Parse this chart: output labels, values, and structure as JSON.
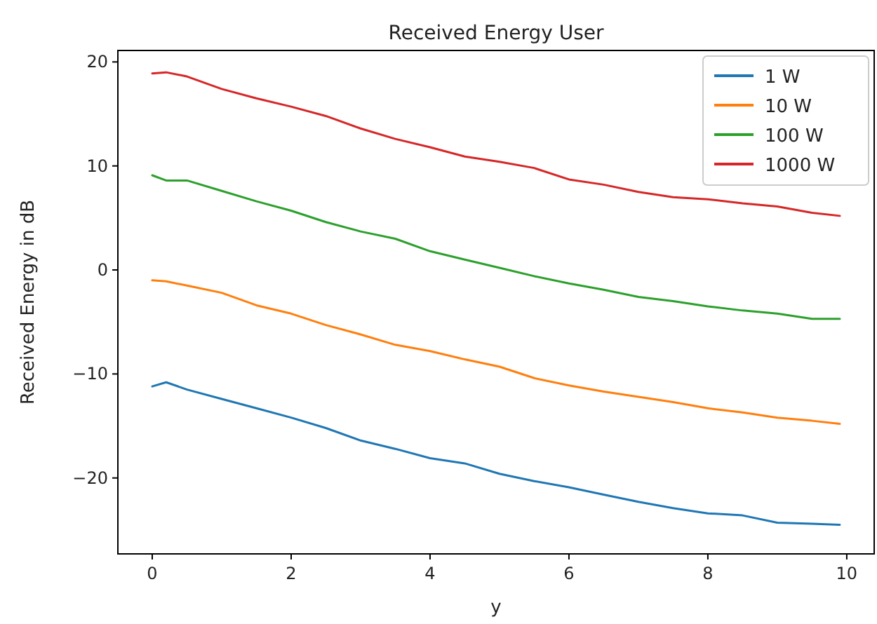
{
  "chart_data": {
    "type": "line",
    "title": "Received Energy User",
    "xlabel": "y",
    "ylabel": "Received Energy in dB",
    "x": [
      0,
      0.2,
      0.5,
      1,
      1.5,
      2,
      2.5,
      3,
      3.5,
      4,
      4.5,
      5,
      5.5,
      6,
      6.5,
      7,
      7.5,
      8,
      8.5,
      9,
      9.5,
      9.9
    ],
    "series": [
      {
        "name": "1 W",
        "color": "#1f77b4",
        "values": [
          -11.2,
          -10.8,
          -11.5,
          -12.4,
          -13.3,
          -14.2,
          -15.2,
          -16.4,
          -17.2,
          -18.1,
          -18.6,
          -19.6,
          -20.3,
          -20.9,
          -21.6,
          -22.3,
          -22.9,
          -23.4,
          -23.6,
          -24.3,
          -24.4,
          -24.5
        ]
      },
      {
        "name": "10 W",
        "color": "#ff7f0e",
        "values": [
          -1.0,
          -1.1,
          -1.5,
          -2.2,
          -3.4,
          -4.2,
          -5.3,
          -6.2,
          -7.2,
          -7.8,
          -8.6,
          -9.3,
          -10.4,
          -11.1,
          -11.7,
          -12.2,
          -12.7,
          -13.3,
          -13.7,
          -14.2,
          -14.5,
          -14.8
        ]
      },
      {
        "name": "100 W",
        "color": "#2ca02c",
        "values": [
          9.1,
          8.6,
          8.6,
          7.6,
          6.6,
          5.7,
          4.6,
          3.7,
          3.0,
          1.8,
          1.0,
          0.2,
          -0.6,
          -1.3,
          -1.9,
          -2.6,
          -3.0,
          -3.5,
          -3.9,
          -4.2,
          -4.7,
          -4.7
        ]
      },
      {
        "name": "1000 W",
        "color": "#d62728",
        "values": [
          18.9,
          19.0,
          18.6,
          17.4,
          16.5,
          15.7,
          14.8,
          13.6,
          12.6,
          11.8,
          10.9,
          10.4,
          9.8,
          8.7,
          8.2,
          7.5,
          7.0,
          6.8,
          6.4,
          6.1,
          5.5,
          5.2
        ]
      }
    ],
    "xlim": [
      -0.495,
      10.395
    ],
    "xticks": [
      0,
      2,
      4,
      6,
      8,
      10
    ],
    "ylim": [
      -27.3,
      21.1
    ],
    "yticks": [
      -20,
      -10,
      0,
      10,
      20
    ],
    "grid": false,
    "legend": "top right"
  }
}
